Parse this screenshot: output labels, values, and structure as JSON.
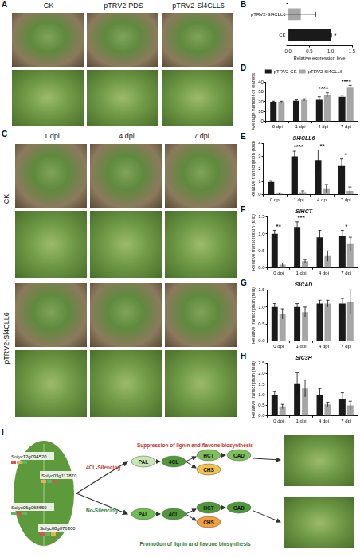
{
  "photo_panels": [
    {
      "panel": "A",
      "columns": [
        "CK",
        "pTRV2-PDS",
        "pTRV2-Sl4CLL6"
      ]
    },
    {
      "panel": "C",
      "columns": [
        "1 dpi",
        "4 dpi",
        "7 dpi"
      ],
      "row_groups": [
        "CK",
        "pTRV2-Sl4CLL6"
      ]
    }
  ],
  "chart_data": [
    {
      "panel": "B",
      "type": "bar",
      "orientation": "horizontal",
      "categories": [
        "pTRV2-Sl4CLL6",
        "CK"
      ],
      "values": [
        0.3,
        1.0
      ],
      "errors": [
        0.35,
        0.02
      ],
      "colors": [
        "#a6a6a6",
        "#1a1a1a"
      ],
      "xlabel": "Relative expression level",
      "xlim": [
        0,
        1.5
      ],
      "xticks": [
        {
          "value": 0,
          "label": "0.0"
        },
        {
          "value": 0.5,
          "label": "0.5"
        },
        {
          "value": 1,
          "label": "1.0"
        },
        {
          "value": 1.5,
          "label": "1.5"
        }
      ],
      "significance": [
        {
          "category": "CK",
          "label": "*"
        }
      ],
      "grid": false
    },
    {
      "panel": "D",
      "type": "bar",
      "categories": [
        "0 dpi",
        "1 dpi",
        "4 dpi",
        "7 dpi"
      ],
      "series": [
        {
          "name": "pTRV2-CK",
          "color": "#1a1a1a",
          "values": [
            20,
            21,
            22,
            25
          ],
          "errors": [
            0.5,
            1,
            3,
            1.5
          ]
        },
        {
          "name": "pTRV2-Sl4CLL6",
          "color": "#a6a6a6",
          "values": [
            20,
            22,
            27,
            35
          ],
          "errors": [
            0.5,
            1,
            2,
            1.5
          ]
        }
      ],
      "ylabel": "Average number of leaflets",
      "ylim": [
        0,
        40
      ],
      "yticks": [
        0,
        10,
        20,
        30,
        40
      ],
      "legend": "top",
      "significance": [
        {
          "category": "4 dpi",
          "label": "****"
        },
        {
          "category": "7 dpi",
          "label": "****"
        }
      ],
      "grid": false
    },
    {
      "panel": "E",
      "type": "bar",
      "title": "Sl4CLL6",
      "categories": [
        "0 dpi",
        "1 dpi",
        "4 dpi",
        "7 dpi"
      ],
      "series": [
        {
          "name": "pTRV2-CK",
          "color": "#1a1a1a",
          "values": [
            1.0,
            3.0,
            2.7,
            2.3
          ],
          "errors": [
            0.1,
            0.4,
            0.8,
            0.5
          ]
        },
        {
          "name": "pTRV2-Sl4CLL6",
          "color": "#a6a6a6",
          "values": [
            0.1,
            0.2,
            0.5,
            0.3
          ],
          "errors": [
            0.05,
            0.1,
            0.3,
            0.3
          ]
        }
      ],
      "ylabel": "Relative transcription (fold)",
      "ylim": [
        0,
        4
      ],
      "yticks": [
        0,
        1,
        2,
        3,
        4
      ],
      "significance": [
        {
          "category": "1 dpi",
          "label": "****"
        },
        {
          "category": "4 dpi",
          "label": "**"
        },
        {
          "category": "7 dpi",
          "label": "*"
        }
      ],
      "grid": false
    },
    {
      "panel": "F",
      "type": "bar",
      "title": "SlHCT",
      "categories": [
        "0 dpi",
        "1 dpi",
        "4 dpi",
        "7 dpi"
      ],
      "series": [
        {
          "name": "pTRV2-CK",
          "color": "#1a1a1a",
          "values": [
            1.0,
            1.2,
            0.9,
            0.95
          ],
          "errors": [
            0.1,
            0.15,
            0.2,
            0.15
          ]
        },
        {
          "name": "pTRV2-Sl4CLL6",
          "color": "#a6a6a6",
          "values": [
            0.1,
            0.2,
            0.35,
            0.7
          ],
          "errors": [
            0.05,
            0.05,
            0.15,
            0.2
          ]
        }
      ],
      "ylabel": "Relative transcription (fold)",
      "ylim": [
        0,
        1.5
      ],
      "yticks": [
        {
          "value": 0,
          "label": "0.0"
        },
        {
          "value": 0.5,
          "label": "0.5"
        },
        {
          "value": 1,
          "label": "1.0"
        },
        {
          "value": 1.5,
          "label": "1.5"
        }
      ],
      "significance": [
        {
          "category": "0 dpi",
          "label": "**"
        },
        {
          "category": "1 dpi",
          "label": "***"
        },
        {
          "category": "7 dpi",
          "label": "*"
        }
      ],
      "grid": false
    },
    {
      "panel": "G",
      "type": "bar",
      "title": "SlCAD",
      "categories": [
        "0 dpi",
        "1 dpi",
        "4 dpi",
        "7 dpi"
      ],
      "series": [
        {
          "name": "pTRV2-CK",
          "color": "#1a1a1a",
          "values": [
            1.0,
            1.0,
            1.1,
            1.1
          ],
          "errors": [
            0.1,
            0.1,
            0.1,
            0.15
          ]
        },
        {
          "name": "pTRV2-Sl4CLL6",
          "color": "#a6a6a6",
          "values": [
            0.8,
            0.85,
            1.1,
            1.15
          ],
          "errors": [
            0.15,
            0.15,
            0.1,
            0.35
          ]
        }
      ],
      "ylabel": "Relative transcription (fold)",
      "ylim": [
        0,
        1.5
      ],
      "yticks": [
        {
          "value": 0,
          "label": "0.0"
        },
        {
          "value": 0.5,
          "label": "0.5"
        },
        {
          "value": 1,
          "label": "1.0"
        },
        {
          "value": 1.5,
          "label": "1.5"
        }
      ],
      "grid": false
    },
    {
      "panel": "H",
      "type": "bar",
      "title": "SlC3H",
      "categories": [
        "0 dpi",
        "1 dpi",
        "4 dpi",
        "7 dpi"
      ],
      "series": [
        {
          "name": "pTRV2-CK",
          "color": "#1a1a1a",
          "values": [
            1.0,
            1.55,
            1.0,
            0.8
          ],
          "errors": [
            0.15,
            0.5,
            0.3,
            0.3
          ]
        },
        {
          "name": "pTRV2-Sl4CLL6",
          "color": "#a6a6a6",
          "values": [
            0.45,
            1.3,
            0.55,
            0.5
          ],
          "errors": [
            0.1,
            0.4,
            0.1,
            0.2
          ]
        }
      ],
      "ylabel": "Relative transcription (fold)",
      "ylim": [
        0,
        2.5
      ],
      "yticks": [
        {
          "value": 0,
          "label": "0.0"
        },
        {
          "value": 0.5,
          "label": "0.5"
        },
        {
          "value": 1,
          "label": "1.0"
        },
        {
          "value": 1.5,
          "label": "1.5"
        },
        {
          "value": 2,
          "label": "2.0"
        },
        {
          "value": 2.5,
          "label": "2.5"
        }
      ],
      "grid": false
    }
  ],
  "diagram": {
    "panel": "I",
    "genes": [
      "Solyc12g094520",
      "Solyc03g117870",
      "Solyc06g068650",
      "Solyc08g076300"
    ],
    "pathways": [
      {
        "label": "4CL-Silencing",
        "effect": "Suppression of lignin and flavone biosynthesis",
        "nodes": [
          "PAL",
          "4CL",
          "HCT",
          "CAD",
          "CHS"
        ]
      },
      {
        "label": "No-Silencing",
        "effect": "Promotion of lignin and flavone biosynthesis",
        "nodes": [
          "PAL",
          "4CL",
          "HCT",
          "CAD",
          "CHS"
        ]
      }
    ]
  }
}
